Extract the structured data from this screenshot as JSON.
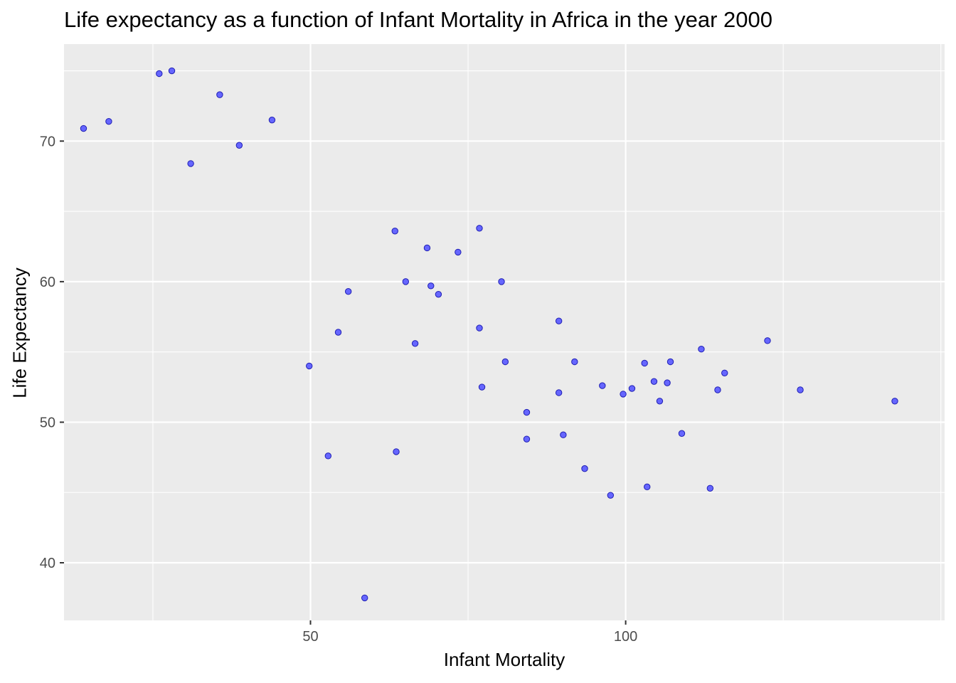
{
  "chart_data": {
    "type": "scatter",
    "title": "Life expectancy as a function of Infant Mortality in Africa in the year 2000",
    "xlabel": "Infant Mortality",
    "ylabel": "Life Expectancy",
    "xlim": [
      10.9,
      150.6
    ],
    "ylim": [
      35.9,
      76.9
    ],
    "x_ticks": [
      50,
      100
    ],
    "y_ticks": [
      40,
      50,
      60,
      70
    ],
    "grid": true,
    "legend": "none",
    "colors": {
      "point_fill": "#6666ff",
      "point_stroke": "#1f1fb3",
      "panel": "#ebebeb",
      "grid": "#ffffff",
      "axis_text": "#4d4d4d"
    },
    "points": [
      {
        "x": 14,
        "y": 70.9
      },
      {
        "x": 18,
        "y": 71.4
      },
      {
        "x": 26,
        "y": 74.8
      },
      {
        "x": 28,
        "y": 75.0
      },
      {
        "x": 31,
        "y": 68.4
      },
      {
        "x": 35.6,
        "y": 73.3
      },
      {
        "x": 38.7,
        "y": 69.7
      },
      {
        "x": 43.9,
        "y": 71.5
      },
      {
        "x": 49.8,
        "y": 54.0
      },
      {
        "x": 52.8,
        "y": 47.6
      },
      {
        "x": 54.4,
        "y": 56.4
      },
      {
        "x": 56,
        "y": 59.3
      },
      {
        "x": 58.6,
        "y": 37.5
      },
      {
        "x": 63.4,
        "y": 63.6
      },
      {
        "x": 63.6,
        "y": 47.9
      },
      {
        "x": 65.1,
        "y": 60.0
      },
      {
        "x": 66.6,
        "y": 55.6
      },
      {
        "x": 68.5,
        "y": 62.4
      },
      {
        "x": 69.1,
        "y": 59.7
      },
      {
        "x": 70.3,
        "y": 59.1
      },
      {
        "x": 73.4,
        "y": 62.1
      },
      {
        "x": 76.8,
        "y": 63.8
      },
      {
        "x": 76.8,
        "y": 56.7
      },
      {
        "x": 77.2,
        "y": 52.5
      },
      {
        "x": 80.3,
        "y": 60.0
      },
      {
        "x": 80.9,
        "y": 54.3
      },
      {
        "x": 84.3,
        "y": 50.7
      },
      {
        "x": 84.3,
        "y": 48.8
      },
      {
        "x": 89.4,
        "y": 57.2
      },
      {
        "x": 89.4,
        "y": 52.1
      },
      {
        "x": 90.1,
        "y": 49.1
      },
      {
        "x": 91.9,
        "y": 54.3
      },
      {
        "x": 93.5,
        "y": 46.7
      },
      {
        "x": 96.3,
        "y": 52.6
      },
      {
        "x": 97.6,
        "y": 44.8
      },
      {
        "x": 99.6,
        "y": 52.0
      },
      {
        "x": 101,
        "y": 52.4
      },
      {
        "x": 103,
        "y": 54.2
      },
      {
        "x": 103.4,
        "y": 45.4
      },
      {
        "x": 104.5,
        "y": 52.9
      },
      {
        "x": 105.4,
        "y": 51.5
      },
      {
        "x": 106.6,
        "y": 52.8
      },
      {
        "x": 107.1,
        "y": 54.3
      },
      {
        "x": 108.9,
        "y": 49.2
      },
      {
        "x": 112,
        "y": 55.2
      },
      {
        "x": 113.4,
        "y": 45.3
      },
      {
        "x": 114.6,
        "y": 52.3
      },
      {
        "x": 115.7,
        "y": 53.5
      },
      {
        "x": 122.5,
        "y": 55.8
      },
      {
        "x": 127.7,
        "y": 52.3
      },
      {
        "x": 142.7,
        "y": 51.5
      }
    ]
  }
}
